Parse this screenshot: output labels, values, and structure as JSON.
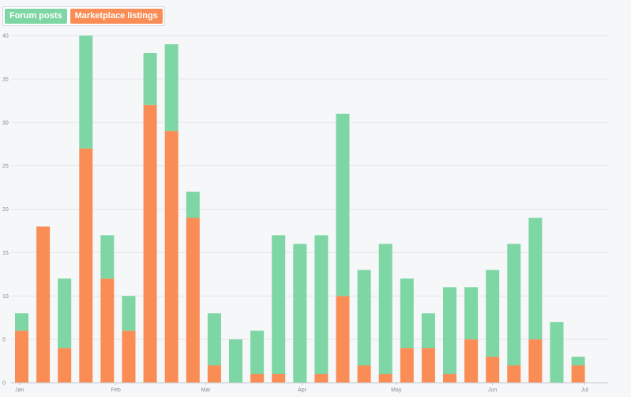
{
  "legend": {
    "forum_label": "Forum posts",
    "market_label": "Marketplace listings"
  },
  "colors": {
    "forum": "#7dd6a3",
    "market": "#fa8c55",
    "grid": "#e4e6ea",
    "axis": "#c4c6ca",
    "background": "#f6f7f9"
  },
  "chart_data": {
    "type": "bar",
    "stacked": true,
    "ylim": [
      0,
      40
    ],
    "y_ticks": [
      0,
      5,
      10,
      15,
      20,
      25,
      30,
      35,
      40
    ],
    "x_ticks": [
      {
        "label": "Jan",
        "at": -0.1
      },
      {
        "label": "Feb",
        "at": 4.4
      },
      {
        "label": "Mar",
        "at": 8.6
      },
      {
        "label": "Apr",
        "at": 13.1
      },
      {
        "label": "May",
        "at": 17.5
      },
      {
        "label": "Jun",
        "at": 22.0
      },
      {
        "label": "Jul",
        "at": 26.3
      }
    ],
    "grid": true,
    "legend_position": "top-left",
    "series": [
      {
        "name": "Marketplace listings",
        "key": "market",
        "values": [
          6,
          18,
          4,
          27,
          12,
          6,
          32,
          29,
          19,
          2,
          0,
          1,
          1,
          0,
          1,
          10,
          2,
          1,
          4,
          4,
          1,
          5,
          3,
          2,
          5,
          0,
          2
        ]
      },
      {
        "name": "Forum posts",
        "key": "forum",
        "values": [
          2,
          0,
          8,
          13,
          5,
          4,
          6,
          10,
          3,
          6,
          5,
          5,
          16,
          16,
          16,
          21,
          11,
          15,
          8,
          4,
          10,
          6,
          10,
          14,
          14,
          7,
          1
        ]
      }
    ]
  }
}
